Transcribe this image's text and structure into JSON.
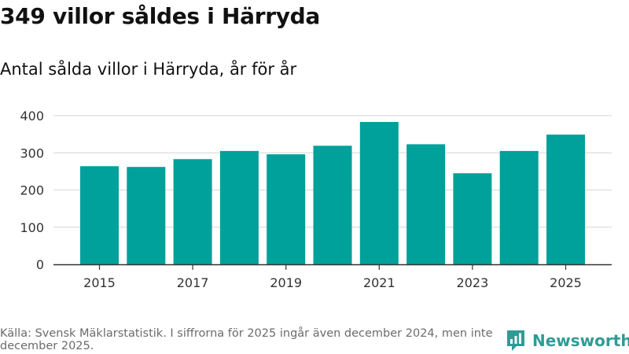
{
  "header": {
    "title": "349 villor såldes i Härryda",
    "subtitle": "Antal sålda villor i Härryda, år för år"
  },
  "footer": {
    "source": "Källa: Svensk Mäklarstatistik. I siffrorna för 2025 ingår även december 2024, men inte december 2025.",
    "brand": "Newsworthy"
  },
  "colors": {
    "bar": "#00a19a",
    "grid": "#dddddd",
    "axis": "#333333",
    "brand": "#2e9c96"
  },
  "chart_data": {
    "type": "bar",
    "title": "349 villor såldes i Härryda",
    "subtitle": "Antal sålda villor i Härryda, år för år",
    "xlabel": "",
    "ylabel": "",
    "categories": [
      "2015",
      "2016",
      "2017",
      "2018",
      "2019",
      "2020",
      "2021",
      "2022",
      "2023",
      "2024",
      "2025"
    ],
    "values": [
      264,
      262,
      283,
      305,
      296,
      319,
      383,
      323,
      245,
      305,
      349
    ],
    "ylim": [
      0,
      400
    ],
    "yticks": [
      0,
      100,
      200,
      300,
      400
    ],
    "xtick_labels": [
      "2015",
      "2017",
      "2019",
      "2021",
      "2023",
      "2025"
    ],
    "grid": true,
    "legend": "none"
  }
}
